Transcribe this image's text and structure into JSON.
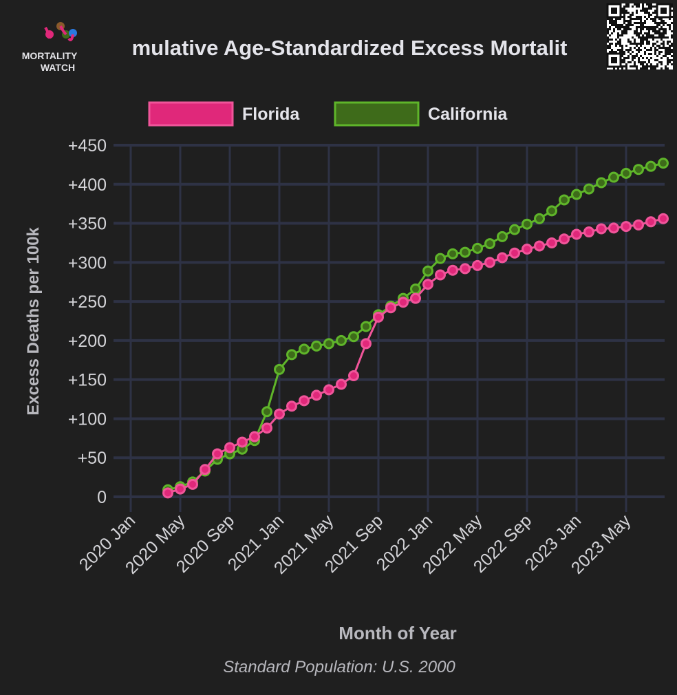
{
  "logo": {
    "line1": "MORTALITY",
    "line2": "WATCH"
  },
  "colors": {
    "florida": "#e0287a",
    "florida_border": "#f0559a",
    "california": "#3e6b1a",
    "california_border": "#5fb52a",
    "grid": "#2e3245",
    "text": "#d4d4d8",
    "background": "#1f1f1f"
  },
  "chart_data": {
    "type": "line",
    "title": "mulative Age-Standardized Excess Mortalit",
    "xlabel": "Month of Year",
    "ylabel": "Excess Deaths per 100k",
    "footnote": "Standard Population: U.S. 2000",
    "ylim": [
      0,
      450
    ],
    "y_ticks": [
      "+450",
      "+400",
      "+350",
      "+300",
      "+250",
      "+200",
      "+150",
      "+100",
      "+50",
      "0"
    ],
    "x_ticks": [
      "2020 Jan",
      "2020 May",
      "2020 Sep",
      "2021 Jan",
      "2021 May",
      "2021 Sep",
      "2022 Jan",
      "2022 May",
      "2022 Sep",
      "2023 Jan",
      "2023 May"
    ],
    "x": [
      "2020 Apr",
      "2020 May",
      "2020 Jun",
      "2020 Jul",
      "2020 Aug",
      "2020 Sep",
      "2020 Oct",
      "2020 Nov",
      "2020 Dec",
      "2021 Jan",
      "2021 Feb",
      "2021 Mar",
      "2021 Apr",
      "2021 May",
      "2021 Jun",
      "2021 Jul",
      "2021 Aug",
      "2021 Sep",
      "2021 Oct",
      "2021 Nov",
      "2021 Dec",
      "2022 Jan",
      "2022 Feb",
      "2022 Mar",
      "2022 Apr",
      "2022 May",
      "2022 Jun",
      "2022 Jul",
      "2022 Aug",
      "2022 Sep",
      "2022 Oct",
      "2022 Nov",
      "2022 Dec",
      "2023 Jan",
      "2023 Feb",
      "2023 Mar",
      "2023 Apr",
      "2023 May",
      "2023 Jun",
      "2023 Jul",
      "2023 Aug"
    ],
    "legend_position": "top-center",
    "grid": true,
    "series": [
      {
        "name": "Florida",
        "values": [
          5,
          10,
          16,
          35,
          55,
          63,
          70,
          77,
          88,
          106,
          116,
          123,
          130,
          137,
          144,
          155,
          196,
          230,
          242,
          249,
          254,
          272,
          284,
          290,
          292,
          296,
          300,
          306,
          312,
          317,
          321,
          325,
          330,
          336,
          339,
          343,
          344,
          346,
          348,
          352,
          356
        ]
      },
      {
        "name": "California",
        "values": [
          9,
          13,
          19,
          33,
          48,
          55,
          61,
          72,
          109,
          163,
          182,
          189,
          193,
          196,
          200,
          205,
          218,
          233,
          244,
          254,
          266,
          289,
          305,
          311,
          313,
          318,
          324,
          333,
          342,
          349,
          356,
          366,
          380,
          387,
          394,
          402,
          409,
          414,
          419,
          423,
          427
        ]
      }
    ]
  }
}
